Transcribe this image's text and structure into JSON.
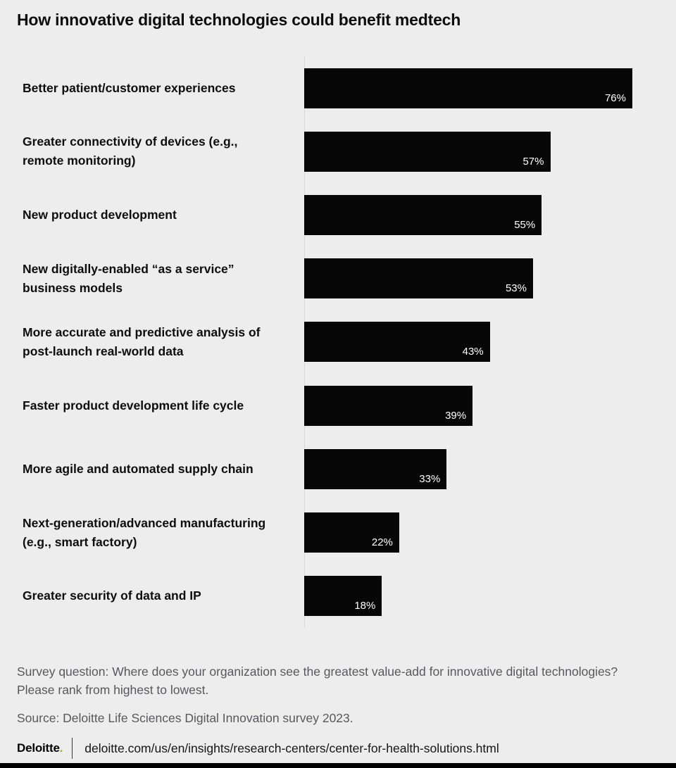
{
  "title": "How innovative digital technologies could benefit medtech",
  "chart_data": {
    "type": "bar",
    "orientation": "horizontal",
    "title": "How innovative digital technologies could benefit medtech",
    "categories": [
      "Better patient/customer experiences",
      "Greater connectivity of devices (e.g., remote monitoring)",
      "New product development",
      "New digitally-enabled “as a service” business models",
      "More accurate and predictive analysis of post-launch real-world data",
      "Faster product development life cycle",
      "More agile and automated supply chain",
      "Next-generation/advanced manufacturing (e.g., smart factory)",
      "Greater security of data and IP"
    ],
    "values": [
      76,
      57,
      55,
      53,
      43,
      39,
      33,
      22,
      18
    ],
    "value_labels": [
      "76%",
      "57%",
      "55%",
      "53%",
      "43%",
      "39%",
      "33%",
      "22%",
      "18%"
    ],
    "unit": "percent",
    "xlim": [
      0,
      76
    ],
    "grid": false,
    "legend": "none",
    "bar_color": "#060606",
    "value_label_color": "#ffffff"
  },
  "notes": {
    "survey_question": "Survey question: Where does your organization see the greatest value-add for innovative digital technologies? Please rank from highest to lowest.",
    "source": "Source: Deloitte Life Sciences Digital Innovation survey 2023."
  },
  "footer": {
    "logo_text": "Deloitte",
    "logo_dot": ".",
    "url": "deloitte.com/us/en/insights/research-centers/center-for-health-solutions.html"
  },
  "colors": {
    "background": "#ededed",
    "bar": "#060606",
    "accent_green": "#86bc25",
    "note_text": "#57585b"
  }
}
